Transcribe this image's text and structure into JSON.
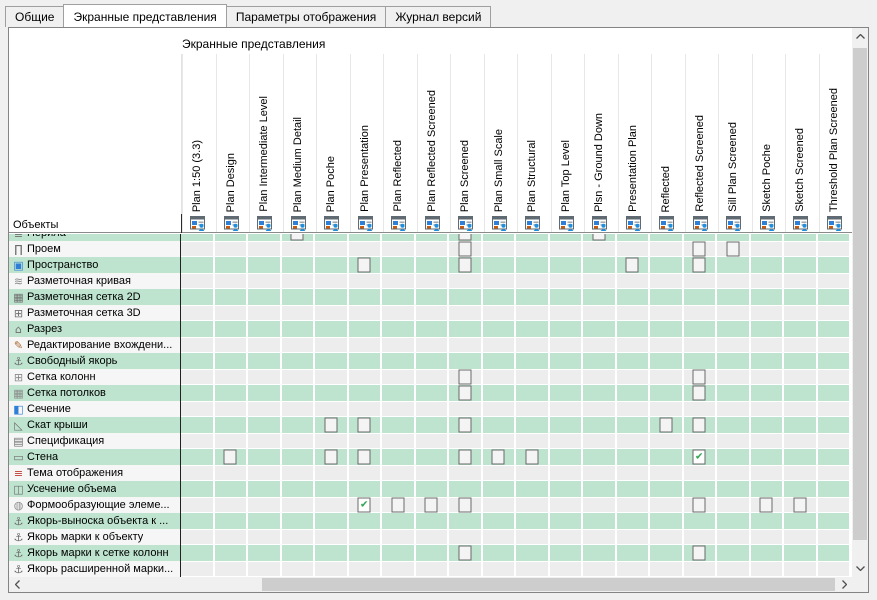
{
  "tabs": [
    {
      "key": "general",
      "label": "Общие",
      "active": false
    },
    {
      "key": "display-representations",
      "label": "Экранные представления",
      "active": true
    },
    {
      "key": "display-options",
      "label": "Параметры отображения",
      "active": false
    },
    {
      "key": "version-history",
      "label": "Журнал версий",
      "active": false
    }
  ],
  "panel": {
    "group_label": "Экранные представления",
    "objects_label": "Объекты",
    "columns": [
      "Plan 1:50 (3.3)",
      "Plan Design",
      "Plan Intermediate Level",
      "Plan Medium Detail",
      "Plan Poche",
      "Plan Presentation",
      "Plan Reflected",
      "Plan Reflected Screened",
      "Plan Screened",
      "Plan Small Scale",
      "Plan Structural",
      "Plan Top Level",
      "Plsn - Ground Down",
      "Presentation Plan",
      "Reflected",
      "Reflected Screened",
      "Sill Plan Screened",
      "Sketch Poche",
      "Sketch Screened",
      "Threshold Plan Screened"
    ],
    "rows": [
      {
        "label": "Перила",
        "icon": "railing-icon",
        "tone": "green",
        "partial": true,
        "cells": {
          "4": "unchecked",
          "9": "unchecked",
          "13": "unchecked"
        }
      },
      {
        "label": "Проем",
        "icon": "opening-icon",
        "tone": "w",
        "cells": {
          "9": "unchecked",
          "16": "unchecked",
          "17": "unchecked"
        }
      },
      {
        "label": "Пространство",
        "icon": "space-icon",
        "tone": "green",
        "cells": {
          "6": "unchecked",
          "9": "unchecked",
          "14": "unchecked",
          "16": "unchecked"
        }
      },
      {
        "label": "Разметочная кривая",
        "icon": "layout-curve-icon",
        "tone": "w",
        "cells": {}
      },
      {
        "label": "Разметочная сетка 2D",
        "icon": "layout-grid-2d-icon",
        "tone": "green",
        "cells": {}
      },
      {
        "label": "Разметочная сетка 3D",
        "icon": "layout-grid-3d-icon",
        "tone": "w",
        "cells": {}
      },
      {
        "label": "Разрез",
        "icon": "section-mark-icon",
        "tone": "green",
        "cells": {}
      },
      {
        "label": "Редактирование вхождени...",
        "icon": "edit-in-place-icon",
        "tone": "w",
        "cells": {}
      },
      {
        "label": "Свободный якорь",
        "icon": "free-anchor-icon",
        "tone": "green",
        "cells": {}
      },
      {
        "label": "Сетка колонн",
        "icon": "column-grid-icon",
        "tone": "w",
        "cells": {
          "9": "unchecked",
          "16": "unchecked"
        }
      },
      {
        "label": "Сетка потолков",
        "icon": "ceiling-grid-icon",
        "tone": "green",
        "cells": {
          "9": "unchecked",
          "16": "unchecked"
        }
      },
      {
        "label": "Сечение",
        "icon": "section-plane-icon",
        "tone": "w",
        "cells": {}
      },
      {
        "label": "Скат крыши",
        "icon": "roof-slab-icon",
        "tone": "green",
        "cells": {
          "5": "unchecked",
          "6": "unchecked",
          "9": "unchecked",
          "15": "unchecked",
          "16": "unchecked"
        }
      },
      {
        "label": "Спецификация",
        "icon": "schedule-icon",
        "tone": "w",
        "cells": {}
      },
      {
        "label": "Стена",
        "icon": "wall-icon",
        "tone": "green",
        "cells": {
          "2": "unchecked",
          "5": "unchecked",
          "6": "unchecked",
          "9": "unchecked",
          "10": "unchecked",
          "11": "unchecked",
          "16": "checked"
        }
      },
      {
        "label": "Тема отображения",
        "icon": "display-theme-icon",
        "tone": "w",
        "cells": {}
      },
      {
        "label": "Усечение объема",
        "icon": "volume-truncation-icon",
        "tone": "green",
        "cells": {}
      },
      {
        "label": "Формообразующие элеме...",
        "icon": "mass-element-icon",
        "tone": "w",
        "cells": {
          "6": "checked",
          "7": "unchecked",
          "8": "unchecked",
          "9": "unchecked",
          "16": "unchecked",
          "18": "unchecked",
          "19": "unchecked"
        }
      },
      {
        "label": "Якорь-выноска объекта к ...",
        "icon": "leader-anchor-icon",
        "tone": "green",
        "cells": {}
      },
      {
        "label": "Якорь марки к объекту",
        "icon": "tag-to-object-anchor-icon",
        "tone": "w",
        "cells": {}
      },
      {
        "label": "Якорь марки к сетке колонн",
        "icon": "tag-to-column-grid-anchor-icon",
        "tone": "green",
        "cells": {
          "9": "unchecked",
          "16": "unchecked"
        }
      },
      {
        "label": "Якорь расширенной марки...",
        "icon": "extended-tag-anchor-icon",
        "tone": "w",
        "cells": {}
      }
    ],
    "colors": {
      "row_green": "#bee4cf",
      "row_light": "#ededed",
      "check_green": "#2ea44f",
      "header_icon_blue": "#2f7fd6",
      "header_icon_orange": "#c55a11"
    }
  }
}
